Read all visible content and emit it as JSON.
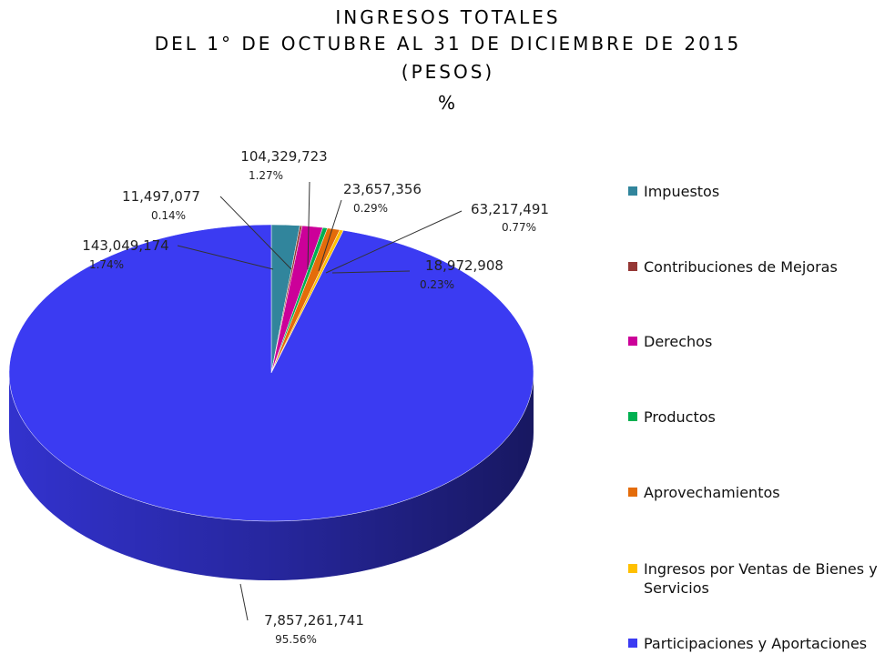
{
  "chart_data": {
    "type": "pie3d",
    "title": [
      "INGRESOS TOTALES",
      "DEL 1° DE OCTUBRE AL 31 DE DICIEMBRE DE 2015",
      "(PESOS)",
      "%"
    ],
    "categories": [
      "Impuestos",
      "Contribuciones de Mejoras",
      "Derechos",
      "Productos",
      "Aprovechamientos",
      "Ingresos por Ventas de Bienes y Servicios",
      "Participaciones y Aportaciones"
    ],
    "values": [
      143049174,
      11497077,
      104329723,
      23657356,
      63217491,
      18972908,
      7857261741
    ],
    "value_labels": [
      "143,049,174",
      "11,497,077",
      "104,329,723",
      "23,657,356",
      "63,217,491",
      "18,972,908",
      "7,857,261,741"
    ],
    "percent_labels": [
      "1.74%",
      "0.14%",
      "1.27%",
      "0.29%",
      "0.77%",
      "0.23%",
      "95.56%"
    ],
    "colors": [
      "#31859c",
      "#953735",
      "#cc0099",
      "#00b050",
      "#e46c0a",
      "#ffc000",
      "#3b3bf2"
    ],
    "legend": "right"
  }
}
